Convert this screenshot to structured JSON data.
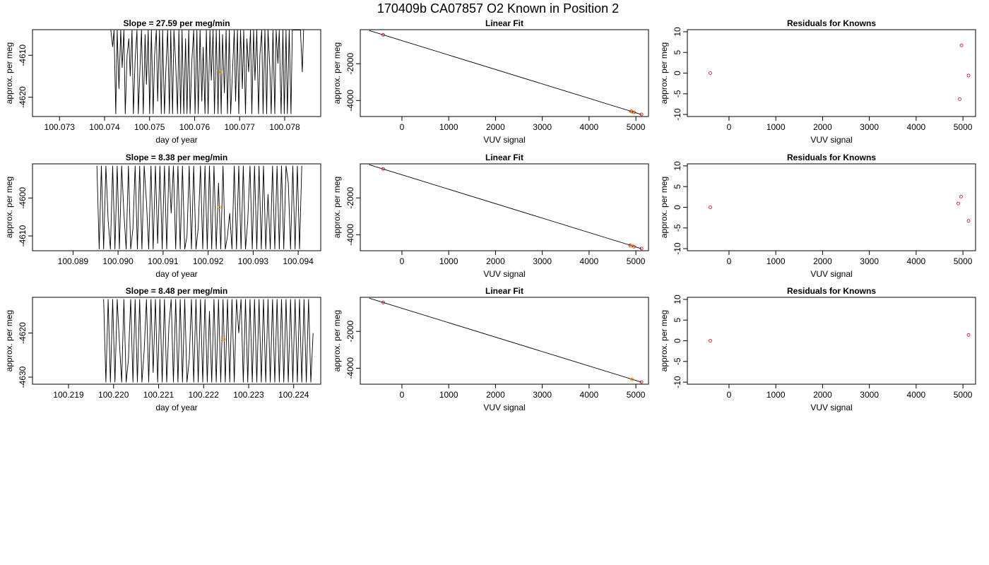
{
  "title": "170409b      CA07857   O2 Known in Position  2",
  "chart_data": [
    {
      "type": "line",
      "title": "Slope =  27.59  per meg/min",
      "xlabel": "day of year",
      "ylabel": "approx. per meg",
      "xlim": [
        100.0724,
        100.0788
      ],
      "ylim": [
        -4624.6,
        -4603.9
      ],
      "xticks": [
        100.073,
        100.074,
        100.075,
        100.076,
        100.077,
        100.078
      ],
      "xtick_labels": [
        "100.073",
        "100.074",
        "100.075",
        "100.076",
        "100.077",
        "100.078"
      ],
      "yticks": [
        -4610,
        -4620
      ],
      "ytick_labels": [
        "-4610",
        "-4620"
      ],
      "x": [
        100.07414,
        100.07418,
        100.07421,
        100.07425,
        100.07428,
        100.07432,
        100.07436,
        100.07439,
        100.07443,
        100.07446,
        100.0745,
        100.07454,
        100.07457,
        100.07461,
        100.07464,
        100.07468,
        100.07472,
        100.07475,
        100.07479,
        100.07482,
        100.07486,
        100.0749,
        100.07493,
        100.07497,
        100.075,
        100.07504,
        100.07508,
        100.07511,
        100.07515,
        100.07518,
        100.07522,
        100.07526,
        100.07529,
        100.07533,
        100.07536,
        100.0754,
        100.07544,
        100.07547,
        100.07551,
        100.07554,
        100.07558,
        100.07562,
        100.07565,
        100.07569,
        100.07572,
        100.07576,
        100.0758,
        100.07583,
        100.07587,
        100.0759,
        100.07594,
        100.07598,
        100.07601,
        100.07605,
        100.07608,
        100.07612,
        100.07616,
        100.07619,
        100.07623,
        100.07626,
        100.0763,
        100.07634,
        100.07637,
        100.07641,
        100.07644,
        100.07648,
        100.07652,
        100.07655,
        100.07659,
        100.07662,
        100.07666,
        100.0767,
        100.07673,
        100.07677,
        100.0768,
        100.07684,
        100.07688,
        100.07691,
        100.07695,
        100.07698,
        100.07702,
        100.07706,
        100.07709,
        100.07713,
        100.07716,
        100.0772,
        100.07724,
        100.07727,
        100.07731,
        100.07734,
        100.07738,
        100.07742,
        100.07745,
        100.07749,
        100.07752,
        100.07756,
        100.0776,
        100.07763,
        100.07767,
        100.0777,
        100.07774,
        100.07778,
        100.07781,
        100.07785,
        100.07788,
        100.07792,
        100.07796,
        100.07799,
        100.07803,
        100.07806,
        100.0781,
        100.07814,
        100.07817,
        100.07821,
        100.07824,
        100.07828,
        100.07832,
        100.07835,
        100.07839,
        100.07842
      ],
      "y": [
        -4604,
        -4608,
        -4604,
        -4624,
        -4604,
        -4618,
        -4604,
        -4613,
        -4604,
        -4624,
        -4610,
        -4606,
        -4615,
        -4604,
        -4624,
        -4611,
        -4604,
        -4624,
        -4612,
        -4604,
        -4624,
        -4605,
        -4617,
        -4604,
        -4624,
        -4604,
        -4624,
        -4610,
        -4604,
        -4621,
        -4604,
        -4624,
        -4604,
        -4624,
        -4614,
        -4604,
        -4624,
        -4604,
        -4624,
        -4604,
        -4612,
        -4624,
        -4604,
        -4624,
        -4604,
        -4624,
        -4606,
        -4624,
        -4604,
        -4624,
        -4611,
        -4604,
        -4624,
        -4604,
        -4624,
        -4604,
        -4621,
        -4608,
        -4624,
        -4604,
        -4624,
        -4604,
        -4616,
        -4604,
        -4624,
        -4604,
        -4624,
        -4604,
        -4624,
        -4605,
        -4619,
        -4604,
        -4624,
        -4604,
        -4624,
        -4614,
        -4604,
        -4621,
        -4604,
        -4624,
        -4604,
        -4618,
        -4604,
        -4624,
        -4606,
        -4614,
        -4604,
        -4624,
        -4604,
        -4616,
        -4604,
        -4624,
        -4610,
        -4604,
        -4624,
        -4604,
        -4624,
        -4604,
        -4613,
        -4624,
        -4604,
        -4624,
        -4604,
        -4612,
        -4604,
        -4624,
        -4604,
        -4624,
        -4604,
        -4624,
        -4604,
        -4624,
        -4604,
        -4604,
        -4604,
        -4604,
        -4604,
        -4604,
        -4614,
        -4604
      ],
      "marker": {
        "x": 100.07658,
        "y": -4614.0
      }
    },
    {
      "type": "scatter",
      "title": "Linear Fit",
      "xlabel": "VUV signal",
      "ylabel": "approx. per meg",
      "xlim": [
        -890,
        5270
      ],
      "ylim": [
        -4870,
        -150
      ],
      "xticks": [
        0,
        1000,
        2000,
        3000,
        4000,
        5000
      ],
      "xtick_labels": [
        "0",
        "1000",
        "2000",
        "3000",
        "4000",
        "5000"
      ],
      "yticks": [
        -2000,
        -4000
      ],
      "ytick_labels": [
        "-2000",
        "-4000"
      ],
      "x": [
        -400,
        4900,
        4960,
        5120
      ],
      "y": [
        -430,
        -4590,
        -4640,
        -4750
      ],
      "fit_line": {
        "x": [
          -700,
          5120
        ],
        "y": [
          -195,
          -4760
        ]
      },
      "marker": {
        "x": 4930,
        "y": -4620
      }
    },
    {
      "type": "scatter",
      "title": "Residuals for Knowns",
      "xlabel": "VUV signal",
      "ylabel": "approx. per meg",
      "xlim": [
        -890,
        5270
      ],
      "ylim": [
        -10.5,
        10.5
      ],
      "xticks": [
        0,
        1000,
        2000,
        3000,
        4000,
        5000
      ],
      "xtick_labels": [
        "0",
        "1000",
        "2000",
        "3000",
        "4000",
        "5000"
      ],
      "yticks": [
        10,
        5,
        0,
        -5,
        -10
      ],
      "ytick_labels": [
        "10",
        "5",
        "0",
        "-5",
        "-10"
      ],
      "x": [
        -400,
        4930,
        4970,
        5120
      ],
      "y": [
        0,
        -6.3,
        6.7,
        -0.6
      ]
    },
    {
      "type": "line",
      "title": "Slope =  8.38  per meg/min",
      "xlabel": "day of year",
      "ylabel": "approx. per meg",
      "xlim": [
        100.0881,
        100.0945
      ],
      "ylim": [
        -4613.9,
        -4591.0
      ],
      "xticks": [
        100.089,
        100.09,
        100.091,
        100.092,
        100.093,
        100.094
      ],
      "xtick_labels": [
        "100.089",
        "100.090",
        "100.091",
        "100.092",
        "100.093",
        "100.094"
      ],
      "yticks": [
        -4600,
        -4610
      ],
      "ytick_labels": [
        "-4600",
        "-4610"
      ],
      "x": [
        100.08953,
        100.08958,
        100.08963,
        100.08968,
        100.08973,
        100.08978,
        100.08983,
        100.08988,
        100.08993,
        100.08998,
        100.09003,
        100.09008,
        100.09013,
        100.09018,
        100.09023,
        100.09028,
        100.09033,
        100.09038,
        100.09043,
        100.09048,
        100.09053,
        100.09058,
        100.09063,
        100.09068,
        100.09073,
        100.09078,
        100.09083,
        100.09088,
        100.09093,
        100.09098,
        100.09103,
        100.09108,
        100.09113,
        100.09118,
        100.09123,
        100.09128,
        100.09133,
        100.09138,
        100.09143,
        100.09148,
        100.09153,
        100.09158,
        100.09163,
        100.09168,
        100.09173,
        100.09178,
        100.09183,
        100.09188,
        100.09193,
        100.09198,
        100.09203,
        100.09208,
        100.09213,
        100.09218,
        100.09223,
        100.09228,
        100.09233,
        100.09238,
        100.09243,
        100.09248,
        100.09253,
        100.09258,
        100.09263,
        100.09268,
        100.09273,
        100.09278,
        100.09283,
        100.09288,
        100.09293,
        100.09298,
        100.09303,
        100.09308,
        100.09313,
        100.09318,
        100.09323,
        100.09328,
        100.09333,
        100.09338,
        100.09343,
        100.09348,
        100.09353,
        100.09358,
        100.09363,
        100.09368,
        100.09373,
        100.09378,
        100.09383,
        100.09388,
        100.09393,
        100.09398,
        100.09403,
        100.09408
      ],
      "y": [
        -4591.5,
        -4613.5,
        -4591.5,
        -4613.5,
        -4591.5,
        -4606,
        -4613.5,
        -4591.5,
        -4613.5,
        -4591.5,
        -4613.5,
        -4591.5,
        -4604,
        -4613.5,
        -4591.5,
        -4613.5,
        -4608,
        -4591.5,
        -4613.5,
        -4591.5,
        -4613.5,
        -4591.5,
        -4601,
        -4613.5,
        -4591.5,
        -4613.5,
        -4591.5,
        -4612,
        -4591.5,
        -4613.5,
        -4591.5,
        -4613.5,
        -4591.5,
        -4604,
        -4591.5,
        -4613.5,
        -4591.5,
        -4613.5,
        -4591.5,
        -4613.5,
        -4610,
        -4591.5,
        -4613.5,
        -4591.5,
        -4613.5,
        -4608,
        -4591.5,
        -4613.5,
        -4591.5,
        -4613.5,
        -4591.5,
        -4613.5,
        -4591.5,
        -4613.5,
        -4596,
        -4613.5,
        -4591.5,
        -4613.5,
        -4610,
        -4604,
        -4613.5,
        -4591.5,
        -4613.5,
        -4591.5,
        -4613.5,
        -4591.5,
        -4613.5,
        -4606,
        -4591.5,
        -4613.5,
        -4591.5,
        -4613.5,
        -4591.5,
        -4613.5,
        -4591.5,
        -4613.5,
        -4599,
        -4613.5,
        -4591.5,
        -4613.5,
        -4591.5,
        -4613.5,
        -4591.5,
        -4613.5,
        -4591.5,
        -4596,
        -4613.5,
        -4591.5,
        -4613.5,
        -4591.5,
        -4613.5,
        -4591.5
      ],
      "marker": {
        "x": 100.09225,
        "y": -4602.4
      }
    },
    {
      "type": "scatter",
      "title": "Linear Fit",
      "xlabel": "VUV signal",
      "ylabel": "approx. per meg",
      "xlim": [
        -890,
        5270
      ],
      "ylim": [
        -4870,
        -150
      ],
      "xticks": [
        0,
        1000,
        2000,
        3000,
        4000,
        5000
      ],
      "xtick_labels": [
        "0",
        "1000",
        "2000",
        "3000",
        "4000",
        "5000"
      ],
      "yticks": [
        -2000,
        -4000
      ],
      "ytick_labels": [
        "-2000",
        "-4000"
      ],
      "x": [
        -400,
        4880,
        4960,
        5120
      ],
      "y": [
        -430,
        -4590,
        -4650,
        -4750
      ],
      "fit_line": {
        "x": [
          -700,
          5120
        ],
        "y": [
          -195,
          -4760
        ]
      },
      "marker": {
        "x": 4930,
        "y": -4620
      }
    },
    {
      "type": "scatter",
      "title": "Residuals for Knowns",
      "xlabel": "VUV signal",
      "ylabel": "approx. per meg",
      "xlim": [
        -890,
        5270
      ],
      "ylim": [
        -10.5,
        10.5
      ],
      "xticks": [
        0,
        1000,
        2000,
        3000,
        4000,
        5000
      ],
      "xtick_labels": [
        "0",
        "1000",
        "2000",
        "3000",
        "4000",
        "5000"
      ],
      "yticks": [
        10,
        5,
        0,
        -5,
        -10
      ],
      "ytick_labels": [
        "10",
        "5",
        "0",
        "-5",
        "-10"
      ],
      "x": [
        -400,
        4900,
        4960,
        5120
      ],
      "y": [
        0,
        0.9,
        2.6,
        -3.3
      ]
    },
    {
      "type": "line",
      "title": "Slope =  8.48  per meg/min",
      "xlabel": "day of year",
      "ylabel": "approx. per meg",
      "xlim": [
        100.2182,
        100.2246
      ],
      "ylim": [
        -4631.6,
        -4611.9
      ],
      "xticks": [
        100.219,
        100.22,
        100.221,
        100.222,
        100.223,
        100.224
      ],
      "xtick_labels": [
        "100.219",
        "100.220",
        "100.221",
        "100.222",
        "100.223",
        "100.224"
      ],
      "yticks": [
        -4620,
        -4630
      ],
      "ytick_labels": [
        "-4620",
        "-4630"
      ],
      "x": [
        100.21978,
        100.21983,
        100.21988,
        100.21993,
        100.21998,
        100.22003,
        100.22008,
        100.22013,
        100.22018,
        100.22023,
        100.22028,
        100.22033,
        100.22038,
        100.22043,
        100.22048,
        100.22053,
        100.22058,
        100.22063,
        100.22068,
        100.22073,
        100.22078,
        100.22083,
        100.22088,
        100.22093,
        100.22098,
        100.22103,
        100.22108,
        100.22113,
        100.22118,
        100.22123,
        100.22128,
        100.22133,
        100.22138,
        100.22143,
        100.22148,
        100.22153,
        100.22158,
        100.22163,
        100.22168,
        100.22173,
        100.22178,
        100.22183,
        100.22188,
        100.22193,
        100.22198,
        100.22203,
        100.22208,
        100.22213,
        100.22218,
        100.22223,
        100.22228,
        100.22233,
        100.22238,
        100.22243,
        100.22248,
        100.22253,
        100.22258,
        100.22263,
        100.22268,
        100.22273,
        100.22278,
        100.22283,
        100.22288,
        100.22293,
        100.22298,
        100.22303,
        100.22308,
        100.22313,
        100.22318,
        100.22323,
        100.22328,
        100.22333,
        100.22338,
        100.22343,
        100.22348,
        100.22353,
        100.22358,
        100.22363,
        100.22368,
        100.22373,
        100.22378,
        100.22383,
        100.22388,
        100.22393,
        100.22398,
        100.22403,
        100.22408,
        100.22413,
        100.22418,
        100.22423,
        100.22428,
        100.22433,
        100.22438,
        100.22443
      ],
      "y": [
        -4612.3,
        -4631.2,
        -4612.3,
        -4631.2,
        -4612.3,
        -4631.2,
        -4612.3,
        -4622,
        -4631.2,
        -4612.3,
        -4631.2,
        -4626,
        -4612.3,
        -4631.2,
        -4612.3,
        -4631.2,
        -4612.3,
        -4631.2,
        -4624,
        -4612.3,
        -4631.2,
        -4612.3,
        -4629,
        -4612.3,
        -4631.2,
        -4612.3,
        -4631.2,
        -4612.3,
        -4631.2,
        -4618,
        -4612.3,
        -4631.2,
        -4612.3,
        -4631.2,
        -4612.3,
        -4631.2,
        -4612.3,
        -4631.2,
        -4626,
        -4612.3,
        -4631.2,
        -4612.3,
        -4631.2,
        -4612.3,
        -4631.2,
        -4612.3,
        -4631.2,
        -4615,
        -4631.2,
        -4612.3,
        -4631.2,
        -4612.3,
        -4631.2,
        -4612.3,
        -4631.2,
        -4612.3,
        -4631.2,
        -4612.3,
        -4631.2,
        -4612.3,
        -4620,
        -4612.3,
        -4631.2,
        -4612.3,
        -4631.2,
        -4612.3,
        -4631.2,
        -4612.3,
        -4631.2,
        -4612.3,
        -4631.2,
        -4612.3,
        -4631.2,
        -4612.3,
        -4631.2,
        -4612.3,
        -4631.2,
        -4612.3,
        -4631.2,
        -4612.3,
        -4631.2,
        -4612.3,
        -4631.2,
        -4612.3,
        -4631.2,
        -4612.3,
        -4631.2,
        -4612.3,
        -4631.2,
        -4612.3,
        -4631.2,
        -4612.3,
        -4631.2,
        -4620
      ],
      "marker": {
        "x": 100.22245,
        "y": -4621.4
      }
    },
    {
      "type": "scatter",
      "title": "Linear Fit",
      "xlabel": "VUV signal",
      "ylabel": "approx. per meg",
      "xlim": [
        -890,
        5270
      ],
      "ylim": [
        -4870,
        -150
      ],
      "xticks": [
        0,
        1000,
        2000,
        3000,
        4000,
        5000
      ],
      "xtick_labels": [
        "0",
        "1000",
        "2000",
        "3000",
        "4000",
        "5000"
      ],
      "yticks": [
        -2000,
        -4000
      ],
      "ytick_labels": [
        "-2000",
        "-4000"
      ],
      "x": [
        -400,
        4920,
        5120
      ],
      "y": [
        -430,
        -4610,
        -4750
      ],
      "fit_line": {
        "x": [
          -700,
          5120
        ],
        "y": [
          -195,
          -4760
        ]
      },
      "marker": {
        "x": 4920,
        "y": -4610
      }
    },
    {
      "type": "scatter",
      "title": "Residuals for Knowns",
      "xlabel": "VUV signal",
      "ylabel": "approx. per meg",
      "xlim": [
        -890,
        5270
      ],
      "ylim": [
        -10.5,
        10.5
      ],
      "xticks": [
        0,
        1000,
        2000,
        3000,
        4000,
        5000
      ],
      "xtick_labels": [
        "0",
        "1000",
        "2000",
        "3000",
        "4000",
        "5000"
      ],
      "yticks": [
        10,
        5,
        0,
        -5,
        -10
      ],
      "ytick_labels": [
        "10",
        "5",
        "0",
        "-5",
        "-10"
      ],
      "x": [
        -400,
        5120
      ],
      "y": [
        0,
        1.4
      ]
    }
  ],
  "colors": {
    "line": "#000000",
    "known_points": "#cc0000",
    "sample_marker": "#ffa500",
    "axis": "#000000"
  }
}
